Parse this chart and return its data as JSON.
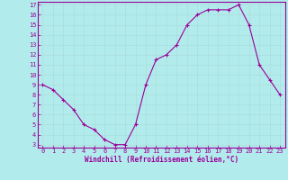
{
  "x": [
    0,
    1,
    2,
    3,
    4,
    5,
    6,
    7,
    8,
    9,
    10,
    11,
    12,
    13,
    14,
    15,
    16,
    17,
    18,
    19,
    20,
    21,
    22,
    23
  ],
  "y": [
    9.0,
    8.5,
    7.5,
    6.5,
    5.0,
    4.5,
    3.5,
    3.0,
    3.0,
    5.0,
    9.0,
    11.5,
    12.0,
    13.0,
    15.0,
    16.0,
    16.5,
    16.5,
    16.5,
    17.0,
    15.0,
    11.0,
    9.5,
    8.0
  ],
  "line_color": "#990099",
  "marker": "+",
  "marker_size": 3,
  "marker_lw": 0.8,
  "bg_color": "#b2ebeb",
  "grid_color": "#aadddd",
  "xlabel": "Windchill (Refroidissement éolien,°C)",
  "xlabel_color": "#990099",
  "tick_color": "#990099",
  "spine_color": "#990099",
  "ylim_min": 3,
  "ylim_max": 17,
  "xlim_min": 0,
  "xlim_max": 23,
  "yticks": [
    3,
    4,
    5,
    6,
    7,
    8,
    9,
    10,
    11,
    12,
    13,
    14,
    15,
    16,
    17
  ],
  "xticks": [
    0,
    1,
    2,
    3,
    4,
    5,
    6,
    7,
    8,
    9,
    10,
    11,
    12,
    13,
    14,
    15,
    16,
    17,
    18,
    19,
    20,
    21,
    22,
    23
  ],
  "tick_fontsize": 5,
  "xlabel_fontsize": 5.5,
  "xlabel_fontweight": "bold",
  "line_width": 0.8
}
